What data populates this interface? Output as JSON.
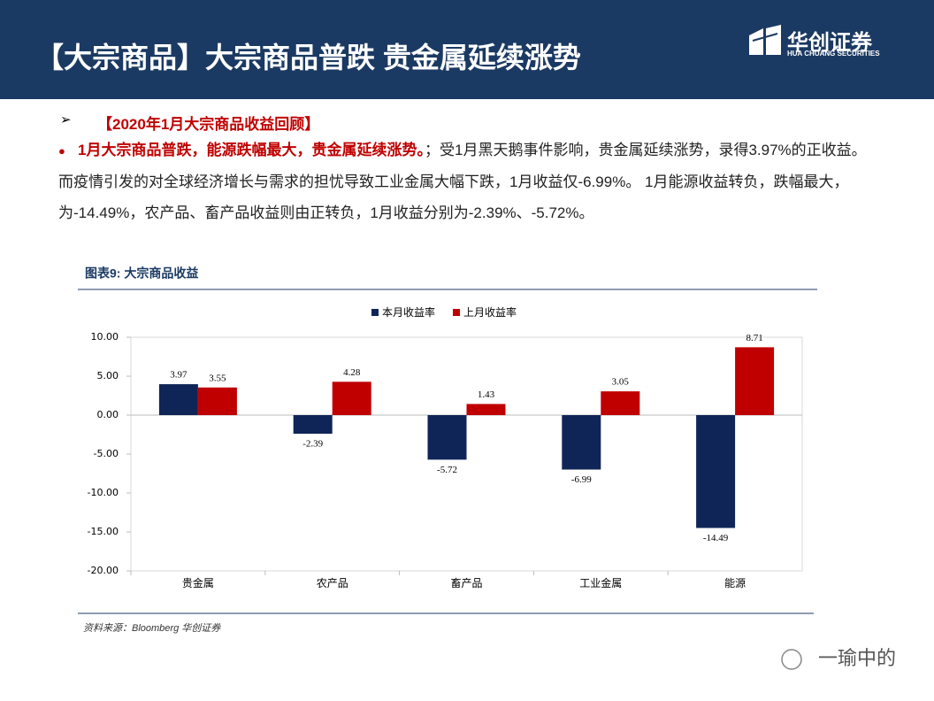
{
  "header": {
    "title": "【大宗商品】大宗商品普跌 贵金属延续涨势",
    "logo_cn": "华创证券",
    "logo_en": "HUA CHUANG SECURITIES"
  },
  "body": {
    "heading": "【2020年1月大宗商品收益回顾】",
    "lead": "1月大宗商品普跌，能源跌幅最大，贵金属延续涨势。",
    "text": "；受1月黑天鹅事件影响，贵金属延续涨势，录得3.97%的正收益。而疫情引发的对全球经济增长与需求的担忧导致工业金属大幅下跌，1月收益仅-6.99%。 1月能源收益转负，跌幅最大，为-14.49%，农产品、畜产品收益则由正转负，1月收益分别为-2.39%、-5.72%。"
  },
  "chart_data": {
    "type": "bar",
    "title": "图表9:  大宗商品收益",
    "source": "资料来源：Bloomberg 华创证券",
    "categories": [
      "贵金属",
      "农产品",
      "畜产品",
      "工业金属",
      "能源"
    ],
    "series": [
      {
        "name": "本月收益率",
        "color": "#0f2557",
        "values": [
          3.97,
          -2.39,
          -5.72,
          -6.99,
          -14.49
        ]
      },
      {
        "name": "上月收益率",
        "color": "#c00000",
        "values": [
          3.55,
          4.28,
          1.43,
          3.05,
          8.71
        ]
      }
    ],
    "ylim": [
      -20,
      10
    ],
    "yticks": [
      {
        "value": -20,
        "label": "-20.00"
      },
      {
        "value": -15,
        "label": "-15.00"
      },
      {
        "value": -10,
        "label": "-10.00"
      },
      {
        "value": -5,
        "label": "-5.00"
      },
      {
        "value": 0,
        "label": "0.00"
      },
      {
        "value": 5,
        "label": "5.00"
      },
      {
        "value": 10,
        "label": "10.00"
      }
    ],
    "grid": false,
    "legend": "top"
  },
  "watermark": "一瑜中的"
}
